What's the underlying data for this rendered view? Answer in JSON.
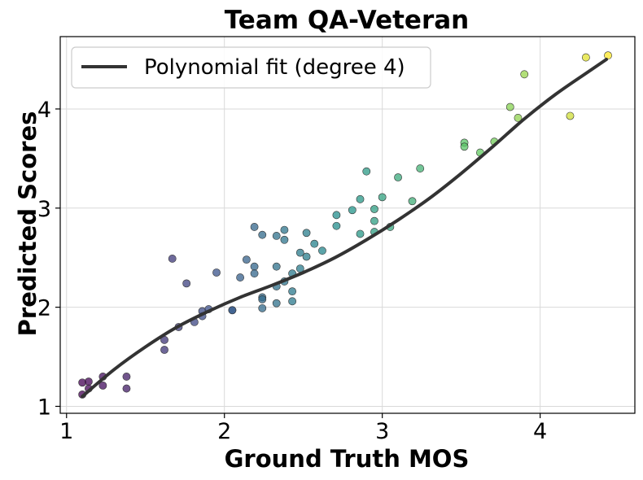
{
  "chart_data": {
    "type": "scatter",
    "title": "Team QA-Veteran",
    "xlabel": "Ground Truth MOS",
    "ylabel": "Predicted Scores",
    "xlim": [
      0.96,
      4.6
    ],
    "ylim": [
      0.93,
      4.73
    ],
    "xticks": [
      1,
      2,
      3,
      4
    ],
    "yticks": [
      1,
      2,
      3,
      4
    ],
    "grid": true,
    "colormap": "viridis",
    "colormap_stops": [
      "#440154",
      "#3b528b",
      "#21918c",
      "#5ec962",
      "#fde725"
    ],
    "legend": {
      "placement": "top-left",
      "entries": [
        "Polynomial fit (degree 4)"
      ]
    },
    "fit": {
      "name": "Polynomial fit (degree 4)",
      "color": "#333333",
      "x": [
        1.1,
        1.3,
        1.5,
        1.7,
        1.9,
        2.1,
        2.3,
        2.5,
        2.7,
        2.9,
        3.1,
        3.3,
        3.5,
        3.7,
        3.9,
        4.1,
        4.3,
        4.42
      ],
      "y": [
        1.1,
        1.37,
        1.6,
        1.8,
        1.96,
        2.1,
        2.22,
        2.35,
        2.5,
        2.68,
        2.88,
        3.1,
        3.35,
        3.62,
        3.9,
        4.15,
        4.37,
        4.5
      ]
    },
    "points": {
      "x": [
        1.1,
        1.14,
        1.23,
        1.1,
        1.14,
        1.23,
        1.38,
        1.38,
        1.62,
        1.62,
        1.67,
        1.71,
        1.76,
        1.81,
        1.86,
        1.86,
        1.9,
        1.95,
        2.05,
        2.05,
        2.1,
        2.14,
        2.19,
        2.19,
        2.19,
        2.24,
        2.24,
        2.24,
        2.24,
        2.33,
        2.33,
        2.33,
        2.33,
        2.38,
        2.38,
        2.38,
        2.43,
        2.43,
        2.43,
        2.48,
        2.48,
        2.52,
        2.52,
        2.57,
        2.62,
        2.71,
        2.71,
        2.81,
        2.86,
        2.86,
        2.9,
        2.95,
        2.95,
        2.95,
        3.0,
        3.05,
        3.1,
        3.19,
        3.24,
        3.52,
        3.52,
        3.62,
        3.71,
        3.81,
        3.86,
        3.9,
        4.19,
        4.29,
        4.43
      ],
      "y": [
        1.12,
        1.18,
        1.21,
        1.24,
        1.25,
        1.3,
        1.3,
        1.18,
        1.57,
        1.67,
        2.49,
        1.8,
        2.24,
        1.85,
        1.91,
        1.96,
        1.98,
        2.35,
        1.97,
        1.97,
        2.3,
        2.48,
        2.81,
        2.41,
        2.34,
        2.73,
        2.1,
        2.08,
        1.99,
        2.72,
        2.41,
        2.21,
        2.04,
        2.78,
        2.68,
        2.26,
        2.34,
        2.16,
        2.06,
        2.55,
        2.39,
        2.75,
        2.51,
        2.64,
        2.57,
        2.93,
        2.82,
        2.98,
        3.09,
        2.74,
        3.37,
        2.99,
        2.87,
        2.76,
        3.11,
        2.81,
        3.31,
        3.07,
        3.4,
        3.66,
        3.62,
        3.56,
        3.67,
        4.02,
        3.91,
        4.35,
        3.93,
        4.52,
        4.54
      ]
    }
  }
}
